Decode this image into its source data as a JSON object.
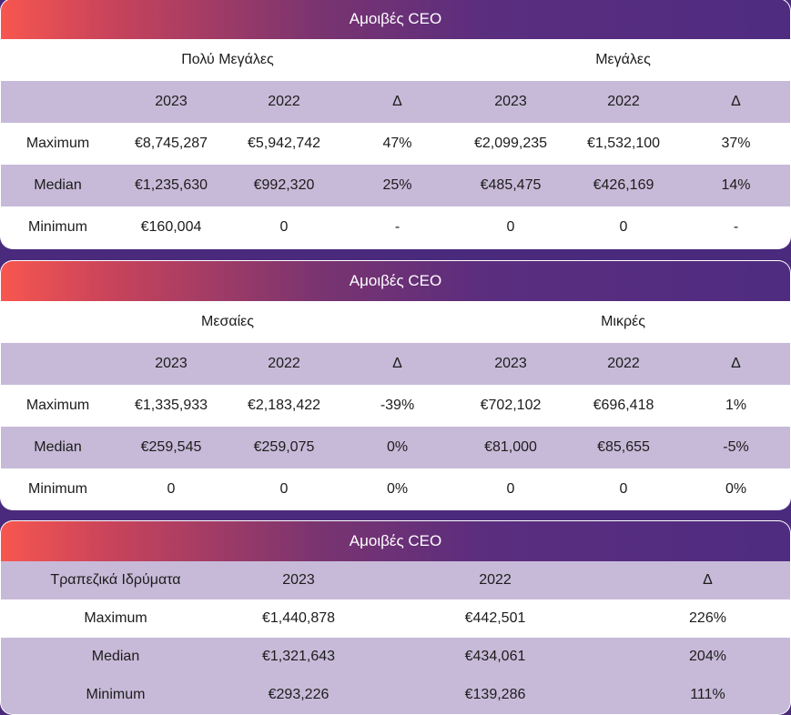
{
  "colors": {
    "header_start": "#f7564f",
    "header_end": "#4f2c80",
    "row_alt": "#c7bad8",
    "background": "#4a2a7c"
  },
  "card1": {
    "title": "Αμοιβές CEO",
    "groups": [
      "Πολύ Μεγάλες",
      "Μεγάλες"
    ],
    "columns": [
      "",
      "2023",
      "2022",
      "Δ",
      "2023",
      "2022",
      "Δ"
    ],
    "rows": [
      [
        "Maximum",
        "€8,745,287",
        "€5,942,742",
        "47%",
        "€2,099,235",
        "€1,532,100",
        "37%"
      ],
      [
        "Median",
        "€1,235,630",
        "€992,320",
        "25%",
        "€485,475",
        "€426,169",
        "14%"
      ],
      [
        "Minimum",
        "€160,004",
        "0",
        "-",
        "0",
        "0",
        "-"
      ]
    ]
  },
  "card2": {
    "title": "Αμοιβές CEO",
    "groups": [
      "Μεσαίες",
      "Μικρές"
    ],
    "columns": [
      "",
      "2023",
      "2022",
      "Δ",
      "2023",
      "2022",
      "Δ"
    ],
    "rows": [
      [
        "Maximum",
        "€1,335,933",
        "€2,183,422",
        "-39%",
        "€702,102",
        "€696,418",
        "1%"
      ],
      [
        "Median",
        "€259,545",
        "€259,075",
        "0%",
        "€81,000",
        "€85,655",
        "-5%"
      ],
      [
        "Minimum",
        "0",
        "0",
        "0%",
        "0",
        "0",
        "0%"
      ]
    ]
  },
  "card3": {
    "title": "Αμοιβές CEO",
    "columns": [
      "Τραπεζικά Ιδρύματα",
      "2023",
      "2022",
      "Δ"
    ],
    "rows": [
      [
        "Maximum",
        "€1,440,878",
        "€442,501",
        "226%"
      ],
      [
        "Median",
        "€1,321,643",
        "€434,061",
        "204%"
      ],
      [
        "Minimum",
        "€293,226",
        "€139,286",
        "111%"
      ]
    ]
  }
}
